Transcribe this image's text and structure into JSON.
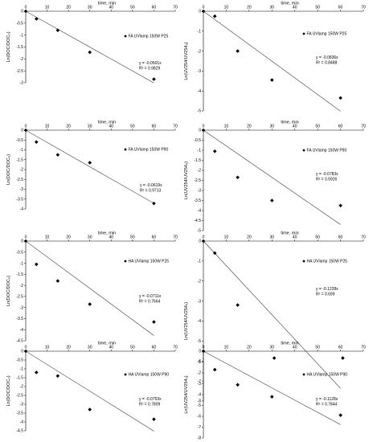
{
  "chart_data": [
    {
      "type": "scatter",
      "x_title": "time, min",
      "y_title": "Ln(DOC/DOC₀)",
      "series_name": "FA UVlamp 150W P25",
      "x_ticks": [
        0,
        10,
        20,
        30,
        40,
        50,
        60,
        70
      ],
      "y_ticks": [
        0,
        -0.5,
        -1,
        -1.5,
        -2,
        -2.5,
        -3
      ],
      "x_tick_labels": [
        "0",
        "10",
        "20",
        "30",
        "40",
        "50",
        "60",
        "70"
      ],
      "y_tick_labels": [
        "0",
        "-0.5",
        "-1",
        "-1.5",
        "-2",
        "-2.5",
        "-3"
      ],
      "xlim": [
        0,
        70
      ],
      "ylim": [
        -3,
        0
      ],
      "points": [
        [
          0,
          0
        ],
        [
          5,
          -0.32
        ],
        [
          15,
          -0.8
        ],
        [
          30,
          -1.72
        ],
        [
          60,
          -2.85
        ]
      ],
      "trendline": {
        "slope": -0.0501,
        "x_end": 60
      },
      "equation": "y = -0.0501x",
      "r2": "R² = 0.9829"
    },
    {
      "type": "scatter",
      "x_title": "time, min",
      "y_title": "Ln(UV254/UV254₀)",
      "series_name": "FA UVlamp 150W P25",
      "x_ticks": [
        0,
        10,
        20,
        30,
        40,
        50,
        60,
        70
      ],
      "y_ticks": [
        0,
        -1,
        -2,
        -3,
        -4,
        -5
      ],
      "x_tick_labels": [
        "0",
        "10",
        "20",
        "30",
        "40",
        "50",
        "60",
        "70"
      ],
      "y_tick_labels": [
        "0",
        "-1",
        "-2",
        "-3",
        "-4",
        "-5"
      ],
      "xlim": [
        0,
        70
      ],
      "ylim": [
        -5,
        0
      ],
      "points": [
        [
          0,
          0
        ],
        [
          5,
          -0.25
        ],
        [
          15,
          -2.0
        ],
        [
          30,
          -3.45
        ],
        [
          60,
          -4.35
        ]
      ],
      "trendline": {
        "slope": -0.0836,
        "x_end": 60
      },
      "equation": "y = -0.0836x",
      "r2": "R² = 0.8488"
    },
    {
      "type": "scatter",
      "x_title": "time, min",
      "y_title": "Ln(DOC/DOC₀)",
      "series_name": "FA UVlamp 150W P90",
      "x_ticks": [
        0,
        10,
        20,
        30,
        40,
        50,
        60,
        70
      ],
      "y_ticks": [
        0,
        -0.5,
        -1,
        -1.5,
        -2,
        -2.5,
        -3,
        -3.5,
        -4
      ],
      "x_tick_labels": [
        "0",
        "10",
        "20",
        "30",
        "40",
        "50",
        "60",
        "70"
      ],
      "y_tick_labels": [
        "0",
        "-0.5",
        "-1",
        "-1.5",
        "-2",
        "-2.5",
        "-3",
        "-3.5",
        "-4"
      ],
      "xlim": [
        0,
        70
      ],
      "ylim": [
        -4,
        0
      ],
      "points": [
        [
          0,
          0
        ],
        [
          5,
          -0.6
        ],
        [
          15,
          -1.25
        ],
        [
          30,
          -1.65
        ],
        [
          60,
          -3.72
        ]
      ],
      "trendline": {
        "slope": -0.0619,
        "x_end": 60
      },
      "equation": "y = -0.0619x",
      "r2": "R² = 0.9713"
    },
    {
      "type": "scatter",
      "x_title": "time, min",
      "y_title": "Ln(UV254/UV254₀)",
      "series_name": "FA UVlamp 150W P90",
      "x_ticks": [
        0,
        10,
        20,
        30,
        40,
        50,
        60,
        70
      ],
      "y_ticks": [
        0,
        -0.5,
        -1,
        -1.5,
        -2,
        -2.5,
        -3,
        -3.5,
        -4,
        -4.5,
        -5
      ],
      "x_tick_labels": [
        "0",
        "10",
        "20",
        "30",
        "40",
        "50",
        "60",
        "70"
      ],
      "y_tick_labels": [
        "0",
        "-0.5",
        "-1",
        "-1.5",
        "-2",
        "-2.5",
        "-3",
        "-3.5",
        "-4",
        "-4.5",
        "-5"
      ],
      "xlim": [
        0,
        70
      ],
      "ylim": [
        -5,
        0
      ],
      "points": [
        [
          0,
          0
        ],
        [
          5,
          -1.05
        ],
        [
          15,
          -2.35
        ],
        [
          30,
          -3.5
        ],
        [
          60,
          -3.75
        ]
      ],
      "trendline": {
        "slope": -0.0783,
        "x_end": 60
      },
      "equation": "y = -0.0783x",
      "r2": "R² = 0.5926"
    },
    {
      "type": "scatter",
      "x_title": "time, min",
      "y_title": "Ln(DOC/DOC₀)",
      "series_name": "HA UVlamp 150W P25",
      "x_ticks": [
        0,
        10,
        20,
        30,
        40,
        50,
        60,
        70
      ],
      "y_ticks": [
        0,
        -0.5,
        -1,
        -1.5,
        -2,
        -2.5,
        -3,
        -3.5,
        -4,
        -4.5
      ],
      "x_tick_labels": [
        "0",
        "10",
        "20",
        "30",
        "40",
        "50",
        "60",
        "70"
      ],
      "y_tick_labels": [
        "0",
        "-0.5",
        "-1",
        "-1.5",
        "-2",
        "-2.5",
        "-3",
        "-3.5",
        "-4",
        "-4.5"
      ],
      "xlim": [
        0,
        70
      ],
      "ylim": [
        -4.5,
        0
      ],
      "points": [
        [
          0,
          0
        ],
        [
          5,
          -1.05
        ],
        [
          15,
          -1.8
        ],
        [
          30,
          -2.85
        ],
        [
          60,
          -3.65
        ]
      ],
      "trendline": {
        "slope": -0.0711,
        "x_end": 60
      },
      "equation": "y = -0.0711x",
      "r2": "R² = 0.7664"
    },
    {
      "type": "scatter",
      "x_title": "time, min",
      "y_title": "Ln(UV254/UV254₀)",
      "series_name": "HA UVlamp 150W P25",
      "x_ticks": [
        0,
        10,
        20,
        30,
        40,
        50,
        60,
        70
      ],
      "y_ticks": [
        0,
        -1,
        -2,
        -3,
        -4,
        -5,
        -6,
        -7,
        -8
      ],
      "x_tick_labels": [
        "0",
        "10",
        "20",
        "30",
        "40",
        "50",
        "60",
        "70"
      ],
      "y_tick_labels": [
        "0",
        "-1",
        "-2",
        "-3",
        "-4",
        "-5",
        "-6",
        "-7",
        "-8"
      ],
      "xlim": [
        0,
        70
      ],
      "ylim": [
        -8,
        0
      ],
      "points": [
        [
          0,
          0
        ],
        [
          5,
          -0.6
        ],
        [
          15,
          -3.2
        ],
        [
          31,
          -5.85
        ],
        [
          61,
          -5.85
        ]
      ],
      "trendline": {
        "slope": -0.1228,
        "x_end": 60
      },
      "equation": "y = -0.1228x",
      "r2": "R² = 0.699"
    },
    {
      "type": "scatter",
      "x_title": "time, min",
      "y_title": "Ln(DOC/DOC₀)",
      "series_name": "HA UVlamp 150W P90",
      "x_ticks": [
        0,
        10,
        20,
        30,
        40,
        50,
        60,
        70
      ],
      "y_ticks": [
        0,
        -0.5,
        -1,
        -1.5,
        -2,
        -2.5,
        -3,
        -3.5,
        -4,
        -4.5
      ],
      "x_tick_labels": [
        "0",
        "10",
        "20",
        "30",
        "40",
        "50",
        "60",
        "70"
      ],
      "y_tick_labels": [
        "0",
        "-0.5",
        "-1",
        "-1.5",
        "-2",
        "-2.5",
        "-3",
        "-3.5",
        "-4",
        "-4.5"
      ],
      "xlim": [
        0,
        70
      ],
      "ylim": [
        -4.5,
        0
      ],
      "points": [
        [
          0,
          0
        ],
        [
          5,
          -1.2
        ],
        [
          15,
          -1.4
        ],
        [
          30,
          -3.3
        ],
        [
          60,
          -3.85
        ]
      ],
      "trendline": {
        "slope": -0.0753,
        "x_end": 60
      },
      "equation": "y = -0.0753x",
      "r2": "R² = 0.7809"
    },
    {
      "type": "scatter",
      "x_title": "time, min",
      "y_title": "Ln(UV254/UV254₀)",
      "series_name": "HA UVlamp 150W P90",
      "x_ticks": [
        0,
        10,
        20,
        30,
        40,
        50,
        60,
        70
      ],
      "y_ticks": [
        0,
        -1,
        -2,
        -3,
        -4,
        -5,
        -6,
        -7,
        -8
      ],
      "x_tick_labels": [
        "0",
        "10",
        "20",
        "30",
        "40",
        "50",
        "60",
        "70"
      ],
      "y_tick_labels": [
        "0",
        "-1",
        "-2",
        "-3",
        "-4",
        "-5",
        "-6",
        "-7",
        "-8"
      ],
      "xlim": [
        0,
        70
      ],
      "ylim": [
        -8,
        0
      ],
      "points": [
        [
          0,
          0
        ],
        [
          5,
          -1.7
        ],
        [
          15,
          -3.1
        ],
        [
          30,
          -4.2
        ],
        [
          60,
          -5.9
        ]
      ],
      "trendline": {
        "slope": -0.1128,
        "x_end": 60
      },
      "equation": "y = -0.1128x",
      "r2": "R² = 0.7844"
    }
  ]
}
